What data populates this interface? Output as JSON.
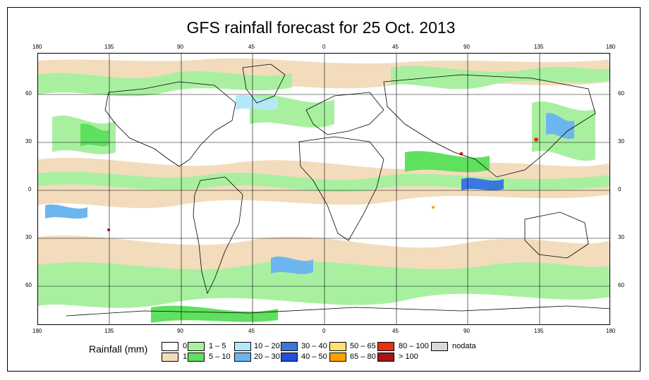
{
  "title": "GFS rainfall forecast for 25 Oct. 2013",
  "axes": {
    "top_ticks": [
      "180",
      "135",
      "90",
      "45",
      "0",
      "45",
      "90",
      "135",
      "180"
    ],
    "bottom_ticks": [
      "180",
      "135",
      "90",
      "45",
      "0",
      "45",
      "90",
      "135",
      "180"
    ],
    "left_ticks": [
      "60",
      "30",
      "0",
      "30",
      "60"
    ],
    "right_ticks": [
      "60",
      "30",
      "0",
      "30",
      "60"
    ]
  },
  "legend": {
    "title": "Rainfall (mm)",
    "items": [
      {
        "label": "0",
        "color": "#ffffff"
      },
      {
        "label": "1",
        "color": "#f2dcbc"
      },
      {
        "label": "1 – 5",
        "color": "#a8f0a0"
      },
      {
        "label": "5 – 10",
        "color": "#5fe05f"
      },
      {
        "label": "10 – 20",
        "color": "#b4e8f8"
      },
      {
        "label": "20 – 30",
        "color": "#6cb6f0"
      },
      {
        "label": "30 – 40",
        "color": "#3a78e0"
      },
      {
        "label": "40 – 50",
        "color": "#1e50d8"
      },
      {
        "label": "50 – 65",
        "color": "#ffe070"
      },
      {
        "label": "65 – 80",
        "color": "#ffa000"
      },
      {
        "label": "80 – 100",
        "color": "#e83010"
      },
      {
        "label": "> 100",
        "color": "#a01818"
      },
      {
        "label": "nodata",
        "color": "#d8d8d8"
      }
    ]
  }
}
